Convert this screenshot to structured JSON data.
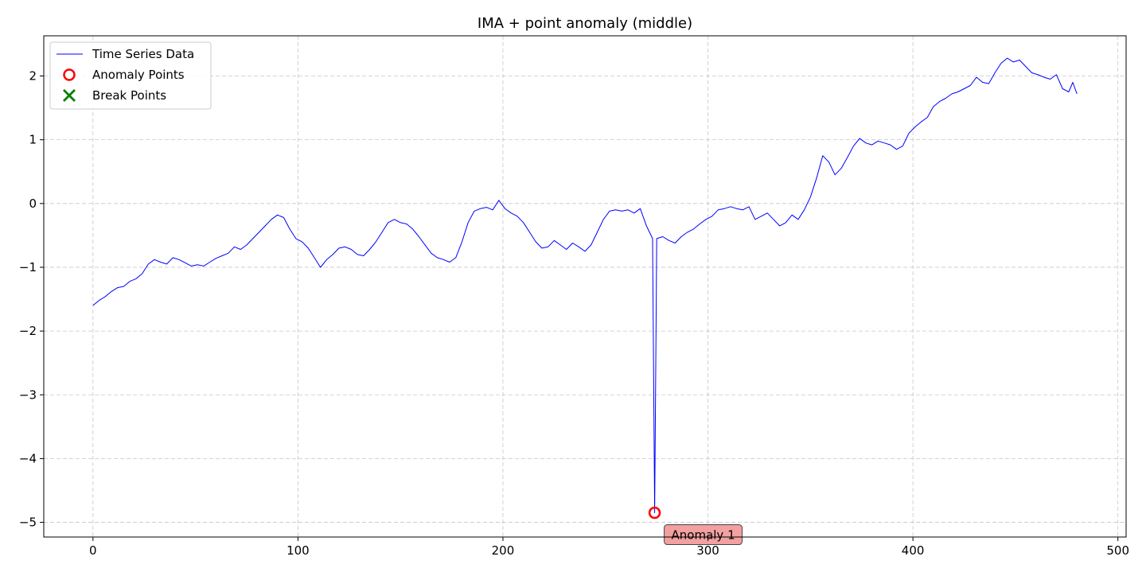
{
  "chart_data": {
    "type": "line",
    "title": "IMA + point anomaly (middle)",
    "xlabel": "",
    "ylabel": "",
    "xlim": [
      -24,
      504
    ],
    "ylim": [
      -5.23,
      2.63
    ],
    "x_ticks": [
      0,
      100,
      200,
      300,
      400,
      500
    ],
    "y_ticks": [
      -5,
      -4,
      -3,
      -2,
      -1,
      0,
      1,
      2
    ],
    "x_tick_labels": [
      "0",
      "100",
      "200",
      "300",
      "400",
      "500"
    ],
    "y_tick_labels": [
      "−5",
      "−4",
      "−3",
      "−2",
      "−1",
      "0",
      "1",
      "2"
    ],
    "grid": true,
    "legend_position": "upper-left",
    "legend": [
      {
        "label": "Time Series Data",
        "marker": "line",
        "color": "#0000ff"
      },
      {
        "label": "Anomaly Points",
        "marker": "circle",
        "color": "#ff0000"
      },
      {
        "label": "Break Points",
        "marker": "x",
        "color": "#008000"
      }
    ],
    "series": [
      {
        "name": "Time Series Data",
        "color": "#0000ff",
        "points": [
          [
            0,
            -1.6
          ],
          [
            3,
            -1.52
          ],
          [
            6,
            -1.46
          ],
          [
            9,
            -1.38
          ],
          [
            12,
            -1.32
          ],
          [
            15,
            -1.3
          ],
          [
            18,
            -1.22
          ],
          [
            21,
            -1.18
          ],
          [
            24,
            -1.1
          ],
          [
            27,
            -0.95
          ],
          [
            30,
            -0.88
          ],
          [
            33,
            -0.92
          ],
          [
            36,
            -0.95
          ],
          [
            39,
            -0.85
          ],
          [
            42,
            -0.88
          ],
          [
            45,
            -0.93
          ],
          [
            48,
            -0.98
          ],
          [
            51,
            -0.96
          ],
          [
            54,
            -0.98
          ],
          [
            57,
            -0.92
          ],
          [
            60,
            -0.86
          ],
          [
            63,
            -0.82
          ],
          [
            66,
            -0.78
          ],
          [
            69,
            -0.68
          ],
          [
            72,
            -0.72
          ],
          [
            75,
            -0.65
          ],
          [
            78,
            -0.55
          ],
          [
            81,
            -0.45
          ],
          [
            84,
            -0.35
          ],
          [
            87,
            -0.25
          ],
          [
            90,
            -0.18
          ],
          [
            93,
            -0.22
          ],
          [
            96,
            -0.4
          ],
          [
            99,
            -0.55
          ],
          [
            102,
            -0.6
          ],
          [
            105,
            -0.7
          ],
          [
            108,
            -0.85
          ],
          [
            111,
            -1.0
          ],
          [
            114,
            -0.88
          ],
          [
            117,
            -0.8
          ],
          [
            120,
            -0.7
          ],
          [
            123,
            -0.68
          ],
          [
            126,
            -0.72
          ],
          [
            129,
            -0.8
          ],
          [
            132,
            -0.82
          ],
          [
            135,
            -0.72
          ],
          [
            138,
            -0.6
          ],
          [
            141,
            -0.45
          ],
          [
            144,
            -0.3
          ],
          [
            147,
            -0.25
          ],
          [
            150,
            -0.3
          ],
          [
            153,
            -0.32
          ],
          [
            156,
            -0.4
          ],
          [
            159,
            -0.52
          ],
          [
            162,
            -0.65
          ],
          [
            165,
            -0.78
          ],
          [
            168,
            -0.85
          ],
          [
            171,
            -0.88
          ],
          [
            174,
            -0.92
          ],
          [
            177,
            -0.85
          ],
          [
            180,
            -0.6
          ],
          [
            183,
            -0.3
          ],
          [
            186,
            -0.12
          ],
          [
            189,
            -0.08
          ],
          [
            192,
            -0.06
          ],
          [
            195,
            -0.1
          ],
          [
            198,
            0.05
          ],
          [
            201,
            -0.08
          ],
          [
            204,
            -0.15
          ],
          [
            207,
            -0.2
          ],
          [
            210,
            -0.3
          ],
          [
            213,
            -0.45
          ],
          [
            216,
            -0.6
          ],
          [
            219,
            -0.7
          ],
          [
            222,
            -0.68
          ],
          [
            225,
            -0.58
          ],
          [
            228,
            -0.65
          ],
          [
            231,
            -0.72
          ],
          [
            234,
            -0.62
          ],
          [
            237,
            -0.68
          ],
          [
            240,
            -0.75
          ],
          [
            243,
            -0.65
          ],
          [
            246,
            -0.45
          ],
          [
            249,
            -0.25
          ],
          [
            252,
            -0.12
          ],
          [
            255,
            -0.1
          ],
          [
            258,
            -0.12
          ],
          [
            261,
            -0.1
          ],
          [
            264,
            -0.15
          ],
          [
            267,
            -0.08
          ],
          [
            270,
            -0.35
          ],
          [
            273,
            -0.55
          ],
          [
            274,
            -4.85
          ],
          [
            275,
            -0.55
          ],
          [
            278,
            -0.52
          ],
          [
            281,
            -0.58
          ],
          [
            284,
            -0.62
          ],
          [
            287,
            -0.52
          ],
          [
            290,
            -0.45
          ],
          [
            293,
            -0.4
          ],
          [
            296,
            -0.32
          ],
          [
            299,
            -0.25
          ],
          [
            302,
            -0.2
          ],
          [
            305,
            -0.1
          ],
          [
            308,
            -0.08
          ],
          [
            311,
            -0.05
          ],
          [
            314,
            -0.08
          ],
          [
            317,
            -0.1
          ],
          [
            320,
            -0.05
          ],
          [
            323,
            -0.25
          ],
          [
            326,
            -0.2
          ],
          [
            329,
            -0.15
          ],
          [
            332,
            -0.25
          ],
          [
            335,
            -0.35
          ],
          [
            338,
            -0.3
          ],
          [
            341,
            -0.18
          ],
          [
            344,
            -0.25
          ],
          [
            347,
            -0.1
          ],
          [
            350,
            0.1
          ],
          [
            353,
            0.4
          ],
          [
            356,
            0.75
          ],
          [
            359,
            0.65
          ],
          [
            362,
            0.45
          ],
          [
            365,
            0.55
          ],
          [
            368,
            0.72
          ],
          [
            371,
            0.9
          ],
          [
            374,
            1.02
          ],
          [
            377,
            0.95
          ],
          [
            380,
            0.92
          ],
          [
            383,
            0.98
          ],
          [
            386,
            0.95
          ],
          [
            389,
            0.92
          ],
          [
            392,
            0.85
          ],
          [
            395,
            0.9
          ],
          [
            398,
            1.1
          ],
          [
            401,
            1.2
          ],
          [
            404,
            1.28
          ],
          [
            407,
            1.35
          ],
          [
            410,
            1.52
          ],
          [
            413,
            1.6
          ],
          [
            416,
            1.65
          ],
          [
            419,
            1.72
          ],
          [
            422,
            1.75
          ],
          [
            425,
            1.8
          ],
          [
            428,
            1.85
          ],
          [
            431,
            1.98
          ],
          [
            434,
            1.9
          ],
          [
            437,
            1.88
          ],
          [
            440,
            2.05
          ],
          [
            443,
            2.2
          ],
          [
            446,
            2.28
          ],
          [
            449,
            2.22
          ],
          [
            452,
            2.25
          ],
          [
            455,
            2.15
          ],
          [
            458,
            2.05
          ],
          [
            461,
            2.02
          ],
          [
            464,
            1.98
          ],
          [
            467,
            1.95
          ],
          [
            470,
            2.02
          ],
          [
            473,
            1.8
          ],
          [
            476,
            1.75
          ],
          [
            478,
            1.9
          ],
          [
            480,
            1.72
          ]
        ]
      }
    ],
    "anomaly_points": [
      {
        "x": 274,
        "y": -4.85,
        "label": "Anomaly 1"
      }
    ],
    "break_points": []
  }
}
